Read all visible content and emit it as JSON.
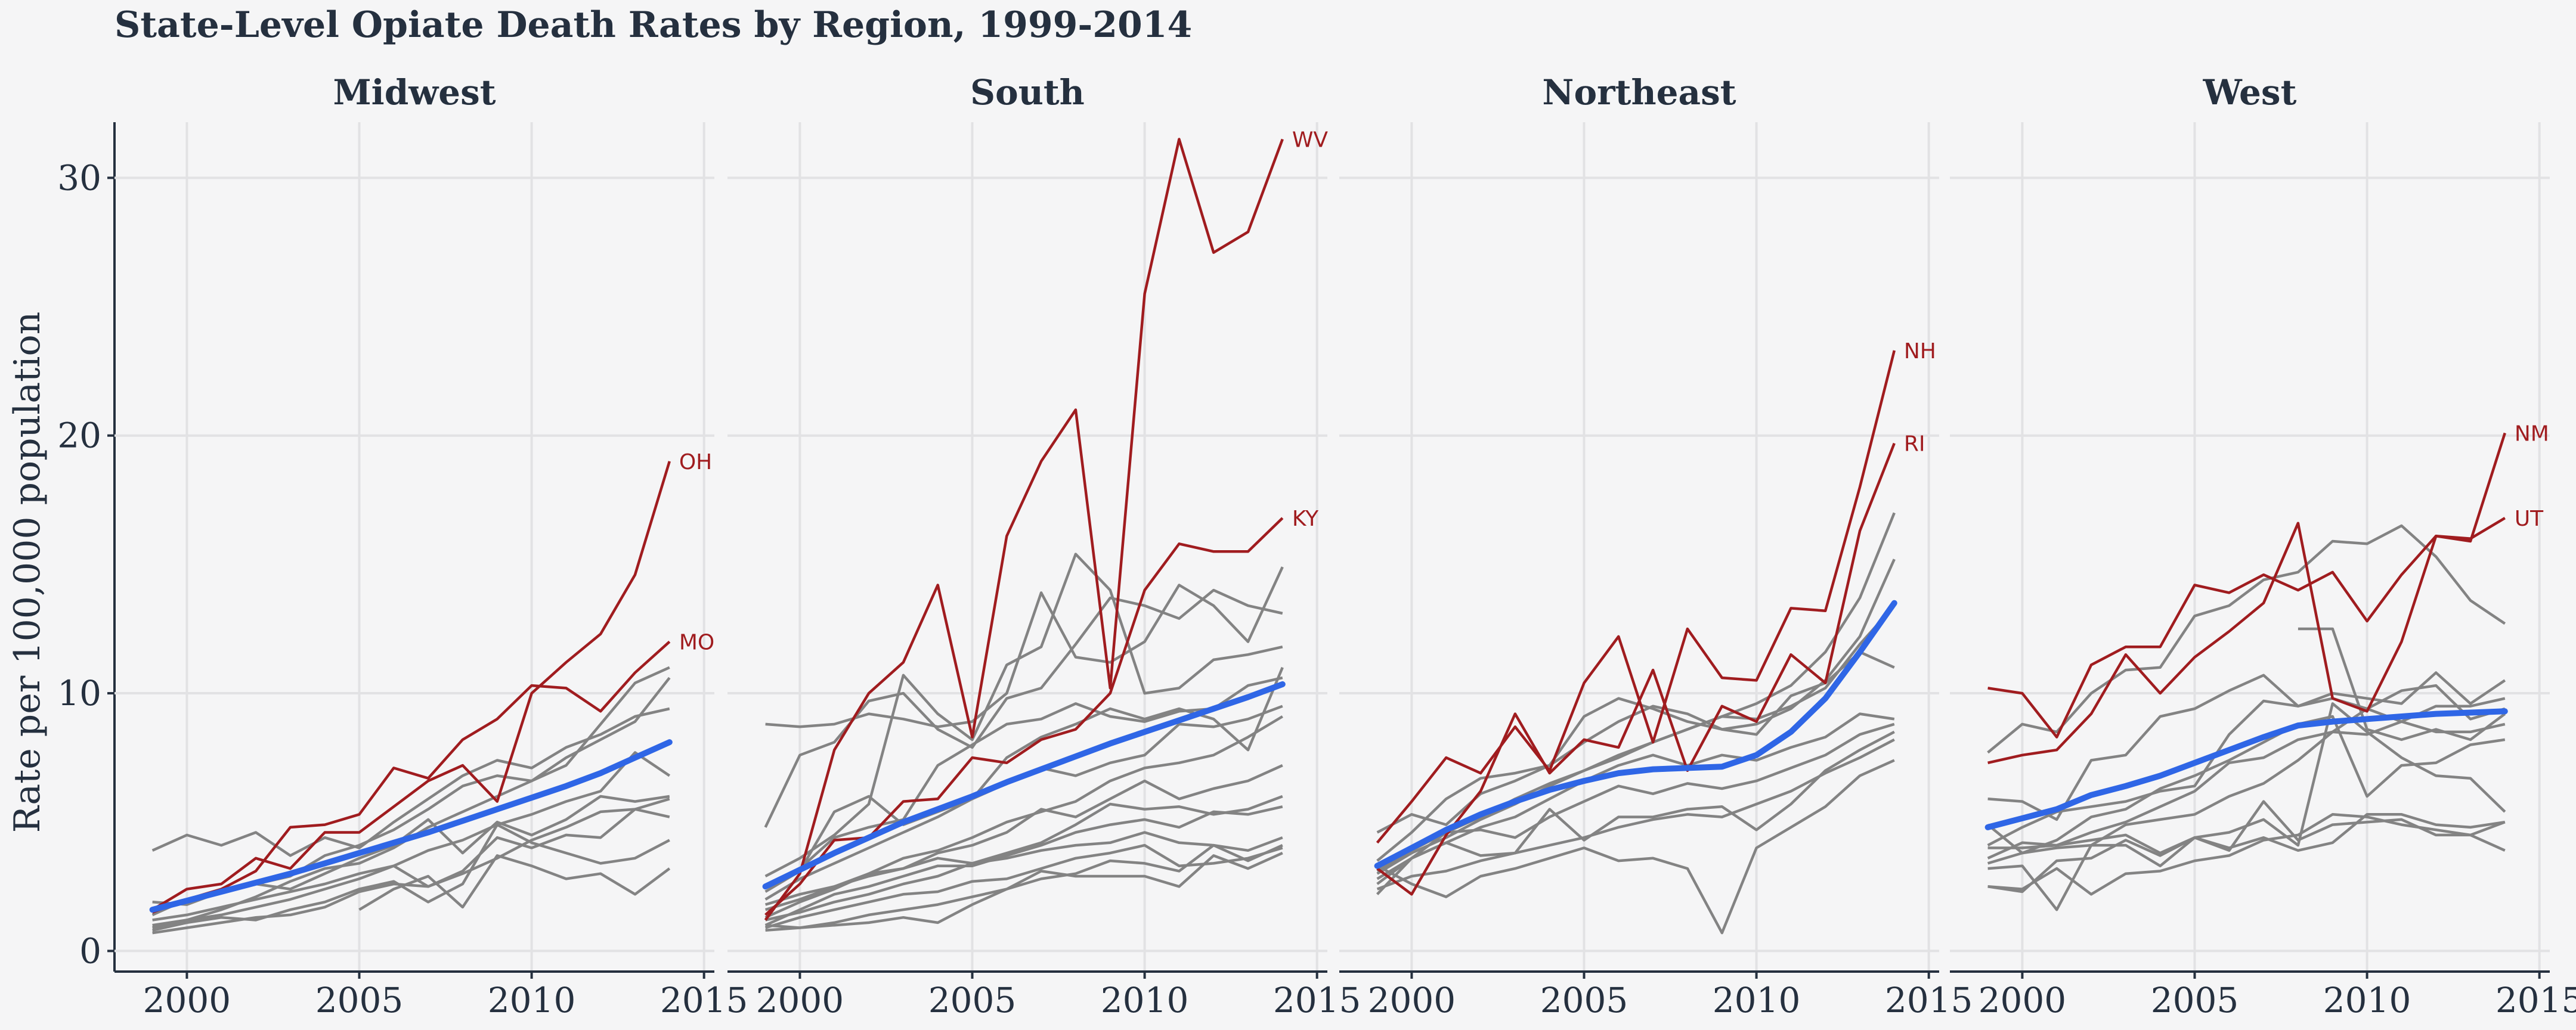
{
  "chart_data": {
    "type": "line",
    "title": "State-Level Opiate Death Rates by Region, 1999-2014",
    "ylabel": "Rate per 100,000 population",
    "xlabel": "",
    "x": [
      1999,
      2000,
      2001,
      2002,
      2003,
      2004,
      2005,
      2006,
      2007,
      2008,
      2009,
      2010,
      2011,
      2012,
      2013,
      2014
    ],
    "xlim": [
      1997.9,
      2015.3
    ],
    "ylim": [
      -0.8,
      33.2
    ],
    "x_ticks": [
      2000,
      2005,
      2010,
      2015
    ],
    "x_tick_labels": [
      "2000",
      "2005",
      "2010",
      "2015"
    ],
    "y_ticks": [
      0,
      10,
      20,
      30
    ],
    "y_tick_labels": [
      "0",
      "10",
      "20",
      "30"
    ],
    "grid": true,
    "colors": {
      "background": "#f5f5f6",
      "grid": "#e2e2e4",
      "state_line": "#838383",
      "highlight": "#a01c1f",
      "trend": "#2f66e6",
      "text": "#25303f"
    },
    "facets": [
      {
        "name": "Midwest",
        "highlighted": [
          {
            "label": "OH",
            "values": [
              1.6,
              2.4,
              2.6,
              3.6,
              3.2,
              4.6,
              4.6,
              5.6,
              6.6,
              7.2,
              5.8,
              10.0,
              11.2,
              12.3,
              14.6,
              19.0
            ]
          },
          {
            "label": "MO",
            "values": [
              1.5,
              2.0,
              2.4,
              3.1,
              4.8,
              4.9,
              5.3,
              7.1,
              6.7,
              8.2,
              9.0,
              10.3,
              10.2,
              9.3,
              10.8,
              12.0
            ]
          }
        ],
        "others": [
          [
            3.9,
            4.5,
            4.1,
            4.6,
            3.7,
            4.4,
            4.0,
            5.0,
            5.9,
            6.8,
            7.4,
            7.1,
            7.9,
            8.4,
            9.1,
            9.4
          ],
          [
            1.9,
            1.8,
            2.3,
            2.6,
            2.9,
            3.7,
            4.1,
            4.7,
            5.5,
            6.4,
            6.8,
            6.6,
            7.2,
            8.8,
            10.4,
            11.0
          ],
          [
            1.0,
            1.2,
            1.6,
            2.1,
            2.7,
            3.2,
            3.4,
            4.0,
            4.8,
            5.4,
            6.0,
            6.6,
            7.5,
            8.2,
            8.9,
            10.6
          ],
          [
            0.9,
            1.2,
            1.4,
            1.7,
            2.0,
            2.4,
            2.8,
            3.3,
            3.9,
            4.3,
            4.9,
            5.3,
            5.8,
            6.2,
            7.7,
            6.8
          ],
          [
            1.4,
            2.0,
            2.3,
            2.6,
            2.4,
            3.0,
            3.6,
            4.1,
            5.1,
            3.8,
            5.0,
            4.5,
            5.1,
            6.0,
            5.8,
            6.0
          ],
          [
            0.7,
            0.9,
            1.1,
            1.3,
            1.4,
            1.7,
            2.3,
            2.6,
            2.5,
            3.0,
            3.6,
            4.3,
            4.8,
            5.4,
            5.5,
            5.2
          ],
          [
            1.2,
            1.4,
            1.7,
            2.0,
            2.3,
            2.6,
            3.0,
            3.3,
            2.5,
            3.1,
            4.4,
            4.0,
            4.5,
            4.4,
            5.5,
            5.9
          ],
          [
            0.8,
            1.1,
            1.3,
            1.2,
            1.6,
            1.9,
            2.4,
            2.7,
            1.9,
            2.6,
            4.9,
            4.2,
            3.8,
            3.4,
            3.6,
            4.3
          ],
          [
            null,
            null,
            null,
            null,
            null,
            null,
            1.6,
            2.4,
            2.9,
            1.7,
            3.7,
            3.3,
            2.8,
            3.0,
            2.2,
            3.2
          ]
        ],
        "trend": [
          1.6,
          1.95,
          2.3,
          2.65,
          3.0,
          3.4,
          3.8,
          4.2,
          4.6,
          5.05,
          5.5,
          5.95,
          6.4,
          6.9,
          7.5,
          8.1
        ]
      },
      {
        "name": "South",
        "highlighted": [
          {
            "label": "WV",
            "values": [
              1.2,
              3.0,
              7.8,
              10.0,
              11.2,
              14.2,
              8.3,
              16.1,
              19.0,
              21.0,
              10.2,
              25.5,
              31.5,
              27.1,
              27.9,
              31.5
            ]
          },
          {
            "label": "KY",
            "values": [
              1.4,
              2.6,
              4.3,
              4.4,
              5.8,
              5.9,
              7.5,
              7.3,
              8.2,
              8.6,
              10.0,
              14.0,
              15.8,
              15.5,
              15.5,
              16.8
            ]
          }
        ],
        "others": [
          [
            4.8,
            7.6,
            8.1,
            9.7,
            10.0,
            8.6,
            7.9,
            9.8,
            10.2,
            11.9,
            13.7,
            13.4,
            12.9,
            14.0,
            13.4,
            13.1
          ],
          [
            8.8,
            8.7,
            8.8,
            9.2,
            9.0,
            8.7,
            8.9,
            10.0,
            13.9,
            11.4,
            11.2,
            12.0,
            14.2,
            13.4,
            12.0,
            14.9
          ],
          [
            2.9,
            3.6,
            4.5,
            5.7,
            10.7,
            9.2,
            8.2,
            11.1,
            11.8,
            15.4,
            14.0,
            10.0,
            10.2,
            11.3,
            11.5,
            11.8
          ],
          [
            2.3,
            3.1,
            5.4,
            6.0,
            4.9,
            5.4,
            5.9,
            7.5,
            8.3,
            8.8,
            9.4,
            9.0,
            9.4,
            9.0,
            7.8,
            11.0
          ],
          [
            2.5,
            3.2,
            4.4,
            4.8,
            5.1,
            7.2,
            8.0,
            8.8,
            9.0,
            9.6,
            9.1,
            8.9,
            9.3,
            9.4,
            10.3,
            10.6
          ],
          [
            2.0,
            2.8,
            3.4,
            4.0,
            4.6,
            5.2,
            5.9,
            6.5,
            7.1,
            6.8,
            7.3,
            7.6,
            8.8,
            8.7,
            9.0,
            9.5
          ],
          [
            1.6,
            2.0,
            2.5,
            3.0,
            3.6,
            3.9,
            4.4,
            5.0,
            5.4,
            5.8,
            6.6,
            7.1,
            7.3,
            7.6,
            8.3,
            9.1
          ],
          [
            1.3,
            1.9,
            2.4,
            3.0,
            3.2,
            3.8,
            4.1,
            4.6,
            5.5,
            5.2,
            5.9,
            6.6,
            5.9,
            6.3,
            6.6,
            7.2
          ],
          [
            1.8,
            2.2,
            2.5,
            2.9,
            3.2,
            3.6,
            3.4,
            3.8,
            4.2,
            4.9,
            5.7,
            5.5,
            5.6,
            5.3,
            5.5,
            6.0
          ],
          [
            1.0,
            1.6,
            2.2,
            2.5,
            2.9,
            3.3,
            3.3,
            3.7,
            4.1,
            4.6,
            4.9,
            5.1,
            4.8,
            5.4,
            5.3,
            5.6
          ],
          [
            1.2,
            1.5,
            1.9,
            2.2,
            2.6,
            2.9,
            3.4,
            3.6,
            3.9,
            4.1,
            4.2,
            4.6,
            4.2,
            4.1,
            3.9,
            4.4
          ],
          [
            0.9,
            1.3,
            1.6,
            1.9,
            2.2,
            2.3,
            2.7,
            2.8,
            3.2,
            3.6,
            3.8,
            4.1,
            3.3,
            3.4,
            3.6,
            4.0
          ],
          [
            0.8,
            0.9,
            1.1,
            1.4,
            1.6,
            1.8,
            2.1,
            2.4,
            2.8,
            3.0,
            3.5,
            3.4,
            3.1,
            4.1,
            3.5,
            4.1
          ],
          [
            1.0,
            0.9,
            1.0,
            1.1,
            1.3,
            1.1,
            1.8,
            2.4,
            3.1,
            2.9,
            2.9,
            2.9,
            2.5,
            3.7,
            3.2,
            3.8
          ]
        ],
        "trend": [
          2.5,
          3.15,
          3.8,
          4.4,
          5.0,
          5.5,
          6.0,
          6.55,
          7.05,
          7.55,
          8.05,
          8.5,
          8.95,
          9.4,
          9.85,
          10.35
        ]
      },
      {
        "name": "Northeast",
        "highlighted": [
          {
            "label": "NH",
            "values": [
              4.2,
              5.8,
              7.5,
              6.9,
              8.7,
              7.0,
              10.4,
              12.2,
              8.1,
              12.5,
              10.6,
              10.5,
              13.3,
              13.2,
              18.0,
              23.3
            ]
          },
          {
            "label": "RI",
            "values": [
              3.2,
              2.2,
              4.5,
              6.2,
              9.2,
              6.9,
              8.2,
              7.9,
              10.9,
              7.0,
              9.5,
              8.9,
              11.5,
              10.4,
              16.3,
              19.7
            ]
          }
        ],
        "others": [
          [
            3.1,
            3.9,
            4.6,
            5.2,
            5.9,
            6.5,
            7.0,
            7.6,
            8.1,
            8.6,
            9.1,
            9.6,
            10.3,
            11.6,
            13.7,
            17.0
          ],
          [
            3.5,
            4.6,
            5.9,
            6.7,
            6.9,
            7.2,
            8.1,
            8.9,
            9.5,
            9.2,
            8.6,
            8.8,
            9.4,
            10.5,
            12.2,
            15.2
          ],
          [
            3.0,
            3.8,
            4.4,
            5.1,
            5.7,
            6.4,
            7.0,
            7.5,
            8.1,
            8.6,
            9.1,
            9.0,
            9.5,
            10.2,
            11.9,
            13.4
          ],
          [
            4.6,
            5.3,
            4.9,
            6.1,
            6.6,
            7.2,
            9.1,
            9.8,
            9.4,
            8.9,
            8.6,
            8.4,
            9.9,
            10.4,
            11.6,
            11.0
          ],
          [
            2.8,
            3.6,
            4.2,
            4.8,
            5.2,
            5.9,
            6.6,
            7.2,
            7.6,
            7.2,
            7.6,
            7.4,
            7.9,
            8.3,
            9.2,
            9.0
          ],
          [
            2.2,
            3.6,
            4.6,
            4.7,
            4.4,
            5.2,
            5.8,
            6.4,
            6.1,
            6.5,
            6.3,
            6.6,
            7.1,
            7.6,
            8.4,
            8.8
          ],
          [
            2.6,
            3.6,
            4.2,
            3.7,
            3.8,
            5.5,
            4.3,
            5.2,
            5.2,
            5.5,
            5.6,
            4.7,
            5.7,
            7.0,
            7.8,
            8.5
          ],
          [
            2.4,
            2.9,
            3.1,
            3.5,
            3.8,
            4.1,
            4.4,
            4.8,
            5.1,
            5.3,
            5.2,
            5.7,
            6.2,
            6.9,
            7.5,
            8.2
          ],
          [
            3.3,
            2.6,
            2.1,
            2.9,
            3.2,
            3.6,
            4.0,
            3.5,
            3.6,
            3.2,
            0.7,
            4.0,
            4.8,
            5.6,
            6.8,
            7.4
          ]
        ],
        "trend": [
          3.3,
          4.0,
          4.7,
          5.3,
          5.8,
          6.25,
          6.6,
          6.9,
          7.05,
          7.1,
          7.15,
          7.6,
          8.5,
          9.8,
          11.6,
          13.5
        ]
      },
      {
        "name": "West",
        "highlighted": [
          {
            "label": "NM",
            "values": [
              10.2,
              10.0,
              8.3,
              11.1,
              11.8,
              11.8,
              14.2,
              13.9,
              14.6,
              14.0,
              14.7,
              12.8,
              14.6,
              16.1,
              15.9,
              20.1
            ]
          },
          {
            "label": "UT",
            "values": [
              7.3,
              7.6,
              7.8,
              9.2,
              11.5,
              10.0,
              11.4,
              12.4,
              13.5,
              16.6,
              9.8,
              9.3,
              12.0,
              16.1,
              16.0,
              16.8
            ]
          }
        ],
        "others": [
          [
            7.7,
            8.8,
            8.5,
            10.0,
            10.9,
            11.0,
            13.0,
            13.4,
            14.4,
            14.7,
            15.9,
            15.8,
            16.5,
            15.3,
            13.6,
            12.7
          ],
          [
            null,
            null,
            null,
            null,
            null,
            null,
            null,
            null,
            null,
            12.5,
            12.5,
            8.6,
            8.2,
            8.6,
            8.2,
            9.2
          ],
          [
            5.9,
            5.8,
            5.1,
            7.4,
            7.6,
            9.1,
            9.4,
            10.1,
            10.7,
            9.5,
            10.0,
            9.8,
            9.6,
            10.8,
            9.6,
            10.5
          ],
          [
            4.1,
            4.8,
            5.4,
            5.6,
            5.8,
            6.2,
            6.4,
            8.4,
            9.7,
            9.5,
            9.8,
            9.4,
            10.1,
            10.3,
            9.0,
            9.4
          ],
          [
            3.6,
            4.2,
            4.1,
            4.6,
            5.0,
            5.6,
            6.2,
            7.3,
            7.5,
            8.2,
            8.5,
            8.4,
            8.9,
            9.5,
            9.5,
            9.8
          ],
          [
            3.4,
            3.8,
            4.0,
            4.1,
            4.9,
            5.1,
            5.3,
            6.0,
            6.5,
            7.4,
            8.5,
            9.4,
            8.9,
            8.5,
            8.5,
            8.8
          ],
          [
            4.9,
            3.8,
            4.3,
            5.2,
            5.5,
            6.3,
            6.8,
            7.4,
            8.1,
            8.8,
            9.1,
            6.0,
            7.2,
            7.3,
            8.0,
            8.2
          ],
          [
            2.5,
            2.3,
            3.5,
            3.6,
            4.3,
            3.7,
            4.4,
            4.6,
            5.1,
            4.1,
            9.6,
            8.5,
            7.5,
            6.8,
            6.7,
            5.4
          ],
          [
            4.0,
            4.0,
            4.1,
            4.3,
            4.5,
            3.8,
            4.4,
            4.0,
            4.4,
            3.9,
            4.2,
            5.3,
            5.3,
            4.9,
            4.8,
            5.0
          ],
          [
            3.2,
            3.3,
            1.6,
            4.1,
            4.1,
            3.3,
            4.4,
            3.9,
            5.8,
            4.3,
            4.9,
            5.0,
            5.1,
            4.5,
            4.5,
            5.0
          ],
          [
            2.5,
            2.4,
            3.2,
            2.2,
            3.0,
            3.1,
            3.5,
            3.7,
            4.3,
            4.5,
            5.3,
            5.2,
            4.9,
            4.7,
            4.5,
            3.9
          ]
        ],
        "trend": [
          4.8,
          5.15,
          5.5,
          6.05,
          6.4,
          6.8,
          7.3,
          7.8,
          8.3,
          8.75,
          8.9,
          9.0,
          9.1,
          9.2,
          9.25,
          9.3
        ]
      }
    ]
  }
}
